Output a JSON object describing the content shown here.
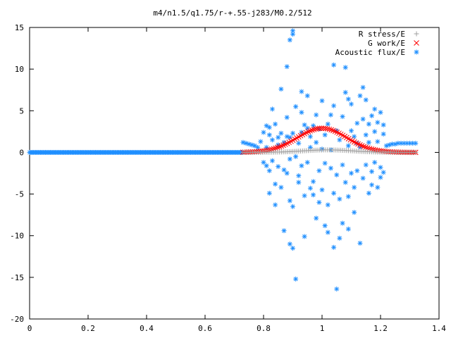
{
  "chart_data": {
    "type": "scatter",
    "title": "m4/n1.5/q1.75/r-+.55-j283/M0.2/512",
    "xlabel": "",
    "ylabel": "",
    "xlim": [
      0,
      1.4
    ],
    "ylim": [
      -20,
      15
    ],
    "x_ticks": [
      "0",
      "0.2",
      "0.4",
      "0.6",
      "0.8",
      "1",
      "1.2",
      "1.4"
    ],
    "y_ticks": [
      "15",
      "10",
      "5",
      "0",
      "-5",
      "-10",
      "-15",
      "-20"
    ],
    "grid": false,
    "legend_position": "top-right",
    "series": [
      {
        "name": "Acoustic flux/E",
        "color": "#1f8fff",
        "marker": "asterisk",
        "baseline": {
          "x_start": 0.0,
          "x_end": 0.73,
          "y": 0.0
        },
        "edge_points": [
          [
            0.73,
            1.2
          ],
          [
            0.74,
            1.1
          ],
          [
            0.75,
            1.0
          ],
          [
            0.76,
            0.9
          ],
          [
            0.77,
            0.8
          ],
          [
            0.78,
            0.6
          ],
          [
            1.22,
            0.8
          ],
          [
            1.23,
            0.9
          ],
          [
            1.24,
            1.0
          ],
          [
            1.25,
            1.0
          ],
          [
            1.26,
            1.1
          ],
          [
            1.27,
            1.1
          ],
          [
            1.28,
            1.1
          ],
          [
            1.29,
            1.1
          ],
          [
            1.3,
            1.1
          ],
          [
            1.31,
            1.1
          ],
          [
            1.32,
            1.1
          ]
        ],
        "points": [
          [
            0.79,
            1.3
          ],
          [
            0.8,
            2.4
          ],
          [
            0.8,
            -1.2
          ],
          [
            0.81,
            3.2
          ],
          [
            0.81,
            -1.6
          ],
          [
            0.81,
            0.6
          ],
          [
            0.82,
            3.0
          ],
          [
            0.82,
            -2.2
          ],
          [
            0.82,
            2.1
          ],
          [
            0.82,
            -4.9
          ],
          [
            0.83,
            5.2
          ],
          [
            0.83,
            -1.0
          ],
          [
            0.83,
            1.5
          ],
          [
            0.84,
            3.4
          ],
          [
            0.84,
            -6.3
          ],
          [
            0.84,
            -3.8
          ],
          [
            0.85,
            1.8
          ],
          [
            0.85,
            -1.7
          ],
          [
            0.85,
            0.9
          ],
          [
            0.86,
            2.3
          ],
          [
            0.86,
            -4.2
          ],
          [
            0.86,
            7.6
          ],
          [
            0.87,
            -2.1
          ],
          [
            0.87,
            1.2
          ],
          [
            0.87,
            -9.4
          ],
          [
            0.88,
            1.9
          ],
          [
            0.88,
            -2.5
          ],
          [
            0.88,
            10.3
          ],
          [
            0.88,
            4.2
          ],
          [
            0.89,
            -0.8
          ],
          [
            0.89,
            -11.0
          ],
          [
            0.89,
            -5.8
          ],
          [
            0.89,
            1.8
          ],
          [
            0.89,
            13.5
          ],
          [
            0.9,
            14.2
          ],
          [
            0.9,
            -11.5
          ],
          [
            0.9,
            2.3
          ],
          [
            0.9,
            -6.5
          ],
          [
            0.9,
            14.6
          ],
          [
            0.91,
            -15.2
          ],
          [
            0.91,
            5.5
          ],
          [
            0.91,
            -0.5
          ],
          [
            0.92,
            -3.6
          ],
          [
            0.92,
            1.1
          ],
          [
            0.92,
            -2.8
          ],
          [
            0.93,
            7.3
          ],
          [
            0.93,
            4.8
          ],
          [
            0.93,
            -1.6
          ],
          [
            0.93,
            2.4
          ],
          [
            0.94,
            -10.1
          ],
          [
            0.94,
            3.3
          ],
          [
            0.94,
            -5.2
          ],
          [
            0.95,
            -1.2
          ],
          [
            0.95,
            6.8
          ],
          [
            0.95,
            2.9
          ],
          [
            0.96,
            -4.3
          ],
          [
            0.96,
            0.6
          ],
          [
            0.96,
            1.9
          ],
          [
            0.97,
            3.2
          ],
          [
            0.97,
            -3.5
          ],
          [
            0.97,
            -5.1
          ],
          [
            0.98,
            4.5
          ],
          [
            0.98,
            -7.9
          ],
          [
            0.98,
            1.2
          ],
          [
            0.99,
            -2.2
          ],
          [
            0.99,
            2.8
          ],
          [
            0.99,
            -6.0
          ],
          [
            1.0,
            6.2
          ],
          [
            1.0,
            -4.5
          ],
          [
            1.0,
            0.4
          ],
          [
            1.01,
            2.1
          ],
          [
            1.01,
            -8.8
          ],
          [
            1.01,
            -1.3
          ],
          [
            1.02,
            -9.6
          ],
          [
            1.02,
            3.4
          ],
          [
            1.02,
            -6.3
          ],
          [
            1.03,
            4.5
          ],
          [
            1.03,
            -1.9
          ],
          [
            1.03,
            0.3
          ],
          [
            1.04,
            10.5
          ],
          [
            1.04,
            -11.4
          ],
          [
            1.04,
            5.6
          ],
          [
            1.04,
            -4.9
          ],
          [
            1.05,
            -16.4
          ],
          [
            1.05,
            2.6
          ],
          [
            1.05,
            -2.7
          ],
          [
            1.06,
            -5.6
          ],
          [
            1.06,
            -10.3
          ],
          [
            1.06,
            1.5
          ],
          [
            1.07,
            -8.5
          ],
          [
            1.07,
            4.3
          ],
          [
            1.07,
            -1.5
          ],
          [
            1.08,
            10.2
          ],
          [
            1.08,
            7.2
          ],
          [
            1.08,
            -3.6
          ],
          [
            1.09,
            0.8
          ],
          [
            1.09,
            -9.2
          ],
          [
            1.09,
            -5.3
          ],
          [
            1.09,
            6.4
          ],
          [
            1.1,
            -2.5
          ],
          [
            1.1,
            5.8
          ],
          [
            1.1,
            2.6
          ],
          [
            1.11,
            -7.2
          ],
          [
            1.11,
            1.9
          ],
          [
            1.11,
            -4.2
          ],
          [
            1.12,
            3.5
          ],
          [
            1.12,
            -2.2
          ],
          [
            1.12,
            1.1
          ],
          [
            1.13,
            -10.9
          ],
          [
            1.13,
            6.8
          ],
          [
            1.13,
            0.6
          ],
          [
            1.14,
            7.8
          ],
          [
            1.14,
            -3.1
          ],
          [
            1.14,
            4.0
          ],
          [
            1.15,
            -1.5
          ],
          [
            1.15,
            6.3
          ],
          [
            1.15,
            2.1
          ],
          [
            1.16,
            -4.9
          ],
          [
            1.16,
            3.4
          ],
          [
            1.16,
            1.2
          ],
          [
            1.17,
            -2.3
          ],
          [
            1.17,
            4.4
          ],
          [
            1.17,
            -3.9
          ],
          [
            1.18,
            2.5
          ],
          [
            1.18,
            -1.2
          ],
          [
            1.18,
            5.2
          ],
          [
            1.19,
            -4.2
          ],
          [
            1.19,
            3.6
          ],
          [
            1.19,
            1.3
          ],
          [
            1.2,
            -1.8
          ],
          [
            1.2,
            4.8
          ],
          [
            1.2,
            -3.0
          ],
          [
            1.21,
            3.3
          ],
          [
            1.21,
            -2.4
          ],
          [
            1.21,
            2.2
          ]
        ]
      },
      {
        "name": "G work/E",
        "color": "#ff0000",
        "marker": "cross",
        "curve": {
          "x_start": 0.73,
          "x_end": 1.32,
          "peak_x": 1.0,
          "peak_y": 2.9,
          "sigma": 0.085
        }
      },
      {
        "name": "R stress/E",
        "color": "#a0a0a0",
        "marker": "plus",
        "curve": {
          "x_start": 0.73,
          "x_end": 1.32,
          "peak_x": 1.02,
          "peak_y": 0.3,
          "sigma": 0.085
        }
      }
    ]
  }
}
